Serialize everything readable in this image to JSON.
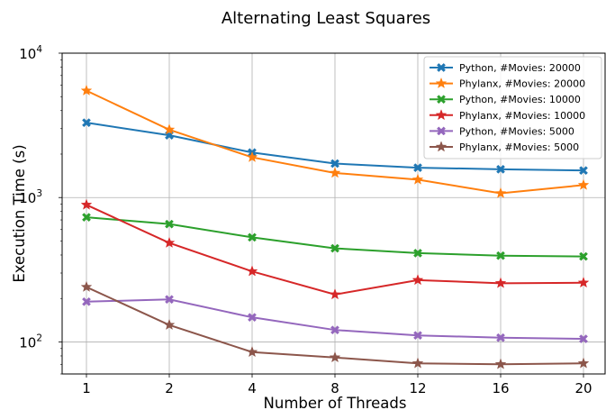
{
  "chart_data": {
    "type": "line",
    "title": "Alternating Least Squares",
    "xlabel": "Number of Threads",
    "ylabel": "Execution Time (s)",
    "yscale": "log",
    "ylim": [
      60,
      10000
    ],
    "ytick_labels": [
      {
        "value": 100,
        "base": "10",
        "exp": "2"
      },
      {
        "value": 1000,
        "base": "10",
        "exp": "3"
      },
      {
        "value": 10000,
        "base": "10",
        "exp": "4"
      }
    ],
    "categories": [
      "1",
      "2",
      "4",
      "8",
      "12",
      "16",
      "20"
    ],
    "grid": true,
    "legend_position": "top-right",
    "series": [
      {
        "name": "Python, #Movies: 20000",
        "color": "#1f77b4",
        "marker": "x-filled",
        "values": [
          3300,
          2700,
          2050,
          1720,
          1610,
          1570,
          1540
        ]
      },
      {
        "name": "Phylanx,  #Movies: 20000",
        "color": "#ff7f0e",
        "marker": "star",
        "values": [
          5500,
          2950,
          1900,
          1480,
          1330,
          1070,
          1220
        ]
      },
      {
        "name": "Python,  #Movies: 10000",
        "color": "#2ca02c",
        "marker": "x-filled",
        "values": [
          730,
          655,
          530,
          445,
          412,
          396,
          391
        ]
      },
      {
        "name": "Phylanx,  #Movies: 10000",
        "color": "#d62728",
        "marker": "star",
        "values": [
          890,
          485,
          308,
          213,
          268,
          255,
          257
        ]
      },
      {
        "name": "Python,  #Movies: 5000",
        "color": "#9467bd",
        "marker": "x-filled",
        "values": [
          190,
          197,
          148,
          121,
          111,
          107,
          105
        ]
      },
      {
        "name": "Phylanx,  #Movies: 5000",
        "color": "#8c564b",
        "marker": "star",
        "values": [
          240,
          131,
          85,
          78,
          71,
          70,
          71
        ]
      }
    ]
  }
}
